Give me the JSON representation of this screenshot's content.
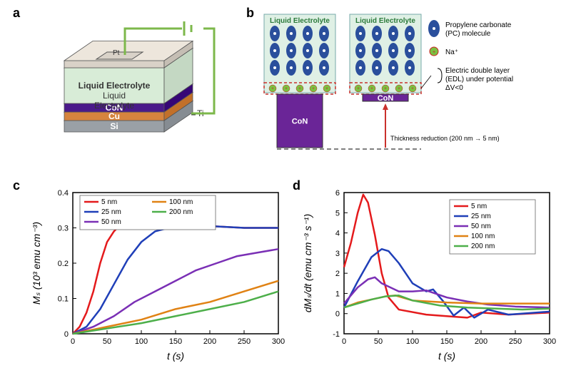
{
  "panel_labels": {
    "a": "a",
    "b": "b",
    "c": "c",
    "d": "d"
  },
  "panel_a": {
    "layers": [
      {
        "name": "Si",
        "label": "Si",
        "color": "#9aa0a6",
        "text_color": "#ffffff"
      },
      {
        "name": "Cu",
        "label": "Cu",
        "color": "#d6843e",
        "text_color": "#ffffff"
      },
      {
        "name": "CoN",
        "label": "CoN",
        "color": "#4a1a8a",
        "text_color": "#ffffff"
      },
      {
        "name": "LiquidElectrolyte",
        "label": "Liquid Electrolyte",
        "color": "#d8ecd7",
        "text_color": "#333333"
      },
      {
        "name": "Pt",
        "label": "Pt",
        "color": "#d9d2c8",
        "text_color": "#333333"
      }
    ],
    "ti_contact_label": "Ti",
    "wire_color": "#7db84b"
  },
  "panel_b": {
    "electrolyte_label": "Liquid Electrolyte",
    "con_label": "CoN",
    "left_con_height_label": "200 nm",
    "right_con_height_label": "5 nm",
    "pc_molecule_color": "#2a4f9c",
    "na_ion_color": "#7ac142",
    "na_ion_border": "#c22",
    "electrolyte_bg": "#dff0e5",
    "con_bg": "#6a2597",
    "edl_box_color": "#c9302c",
    "legend_items": [
      {
        "label": "Propylene carbonate (PC) molecule",
        "swatch": "pc"
      },
      {
        "label": "Na⁺",
        "swatch": "na"
      },
      {
        "label": "Electric double layer (EDL) under potential ΔV<0",
        "swatch": "edl"
      }
    ],
    "reduction_text": "Thickness reduction (200 nm → 5 nm)",
    "arrow_color": "#c9302c"
  },
  "chart_common": {
    "series_colors": {
      "5nm": "#e41a1c",
      "25nm": "#1f3fb8",
      "50nm": "#7a2fb5",
      "100nm": "#e08214",
      "200nm": "#4daf4a"
    },
    "axis_color": "#000000",
    "line_width": 2.5,
    "background_color": "#ffffff",
    "font_size_axis_label": 14,
    "font_size_ticks": 11
  },
  "panel_c": {
    "type": "line",
    "x_label": "t (s)",
    "y_label": "Mₛ (10³ emu cm⁻³)",
    "xlim": [
      0,
      300
    ],
    "xtick_step": 50,
    "ylim": [
      0,
      0.4
    ],
    "ytick_step": 0.1,
    "legend_items": [
      "5 nm",
      "25 nm",
      "50 nm",
      "100 nm",
      "200 nm"
    ],
    "series": {
      "5nm": [
        [
          0,
          0.0
        ],
        [
          10,
          0.02
        ],
        [
          20,
          0.06
        ],
        [
          30,
          0.12
        ],
        [
          40,
          0.2
        ],
        [
          50,
          0.26
        ],
        [
          60,
          0.29
        ],
        [
          70,
          0.31
        ],
        [
          80,
          0.315
        ],
        [
          100,
          0.31
        ],
        [
          150,
          0.31
        ],
        [
          200,
          0.305
        ],
        [
          250,
          0.3
        ],
        [
          300,
          0.3
        ]
      ],
      "25nm": [
        [
          0,
          0.0
        ],
        [
          20,
          0.02
        ],
        [
          40,
          0.07
        ],
        [
          60,
          0.14
        ],
        [
          80,
          0.21
        ],
        [
          100,
          0.26
        ],
        [
          120,
          0.29
        ],
        [
          140,
          0.3
        ],
        [
          160,
          0.305
        ],
        [
          200,
          0.305
        ],
        [
          250,
          0.3
        ],
        [
          300,
          0.3
        ]
      ],
      "50nm": [
        [
          0,
          0.0
        ],
        [
          30,
          0.02
        ],
        [
          60,
          0.05
        ],
        [
          90,
          0.09
        ],
        [
          120,
          0.12
        ],
        [
          150,
          0.15
        ],
        [
          180,
          0.18
        ],
        [
          210,
          0.2
        ],
        [
          240,
          0.22
        ],
        [
          270,
          0.23
        ],
        [
          300,
          0.24
        ]
      ],
      "100nm": [
        [
          0,
          0.0
        ],
        [
          50,
          0.02
        ],
        [
          100,
          0.04
        ],
        [
          150,
          0.07
        ],
        [
          200,
          0.09
        ],
        [
          250,
          0.12
        ],
        [
          300,
          0.15
        ]
      ],
      "200nm": [
        [
          0,
          0.0
        ],
        [
          50,
          0.015
        ],
        [
          100,
          0.03
        ],
        [
          150,
          0.05
        ],
        [
          200,
          0.07
        ],
        [
          250,
          0.09
        ],
        [
          300,
          0.12
        ]
      ]
    }
  },
  "panel_d": {
    "type": "line",
    "x_label": "t (s)",
    "y_label": "dMₛ/dt (emu cm⁻³ s⁻¹)",
    "xlim": [
      0,
      300
    ],
    "xtick_step": 50,
    "ylim": [
      -1,
      6
    ],
    "ytick_step": 1,
    "legend_items": [
      "5 nm",
      "25 nm",
      "50 nm",
      "100 nm",
      "200 nm"
    ],
    "series": {
      "5nm": [
        [
          0,
          2.3
        ],
        [
          10,
          3.5
        ],
        [
          20,
          5.0
        ],
        [
          28,
          5.9
        ],
        [
          35,
          5.5
        ],
        [
          45,
          3.9
        ],
        [
          55,
          2.0
        ],
        [
          65,
          0.8
        ],
        [
          80,
          0.2
        ],
        [
          120,
          -0.05
        ],
        [
          160,
          -0.15
        ],
        [
          180,
          -0.2
        ],
        [
          200,
          0.05
        ],
        [
          240,
          -0.05
        ],
        [
          300,
          0.05
        ]
      ],
      "25nm": [
        [
          0,
          0.3
        ],
        [
          20,
          1.6
        ],
        [
          40,
          2.8
        ],
        [
          55,
          3.2
        ],
        [
          65,
          3.1
        ],
        [
          80,
          2.5
        ],
        [
          100,
          1.5
        ],
        [
          120,
          1.1
        ],
        [
          130,
          1.2
        ],
        [
          145,
          0.6
        ],
        [
          160,
          -0.1
        ],
        [
          175,
          0.3
        ],
        [
          190,
          -0.2
        ],
        [
          210,
          0.2
        ],
        [
          240,
          -0.05
        ],
        [
          300,
          0.1
        ]
      ],
      "50nm": [
        [
          0,
          0.5
        ],
        [
          20,
          1.3
        ],
        [
          35,
          1.7
        ],
        [
          45,
          1.8
        ],
        [
          55,
          1.5
        ],
        [
          80,
          1.1
        ],
        [
          100,
          1.1
        ],
        [
          120,
          1.15
        ],
        [
          150,
          0.8
        ],
        [
          180,
          0.6
        ],
        [
          210,
          0.45
        ],
        [
          250,
          0.35
        ],
        [
          300,
          0.3
        ]
      ],
      "100nm": [
        [
          0,
          0.3
        ],
        [
          20,
          0.55
        ],
        [
          40,
          0.7
        ],
        [
          60,
          0.85
        ],
        [
          75,
          0.9
        ],
        [
          100,
          0.65
        ],
        [
          150,
          0.55
        ],
        [
          200,
          0.5
        ],
        [
          250,
          0.5
        ],
        [
          300,
          0.5
        ]
      ],
      "200nm": [
        [
          0,
          0.3
        ],
        [
          20,
          0.5
        ],
        [
          40,
          0.7
        ],
        [
          60,
          0.85
        ],
        [
          80,
          0.9
        ],
        [
          100,
          0.65
        ],
        [
          140,
          0.4
        ],
        [
          180,
          0.3
        ],
        [
          220,
          0.25
        ],
        [
          260,
          0.2
        ],
        [
          300,
          0.25
        ]
      ]
    }
  }
}
